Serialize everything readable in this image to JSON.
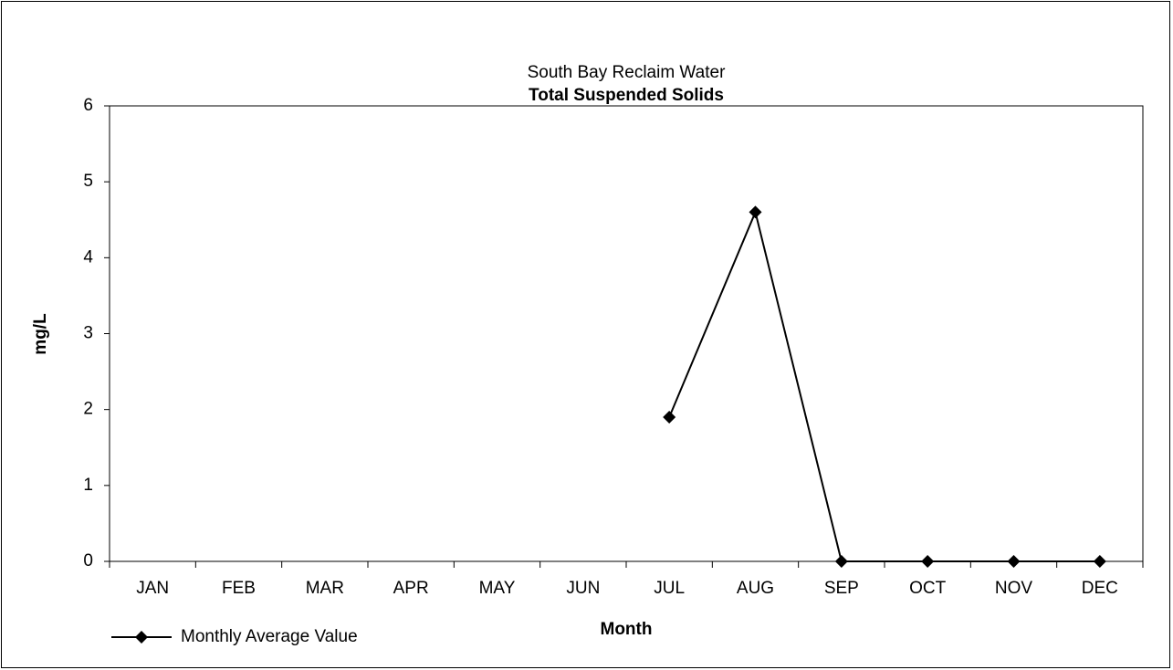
{
  "chart_data": {
    "type": "line",
    "title": "South Bay Reclaim Water",
    "subtitle": "Total Suspended Solids",
    "y_label": "mg/L",
    "x_label": "Month",
    "categories": [
      "JAN",
      "FEB",
      "MAR",
      "APR",
      "MAY",
      "JUN",
      "JUL",
      "AUG",
      "SEP",
      "OCT",
      "NOV",
      "DEC"
    ],
    "series": [
      {
        "name": "Monthly Average Value",
        "color": "#000000",
        "values": [
          null,
          null,
          null,
          null,
          null,
          null,
          1.9,
          4.6,
          0,
          0,
          0,
          0
        ]
      }
    ],
    "ylim": [
      0,
      6
    ],
    "yticks": [
      0,
      1,
      2,
      3,
      4,
      5,
      6
    ],
    "grid": false
  }
}
